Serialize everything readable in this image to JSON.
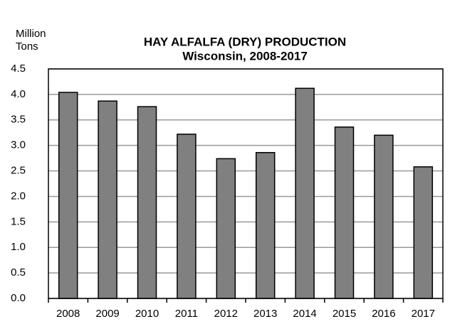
{
  "chart_data": {
    "type": "bar",
    "title": "HAY ALFALFA (DRY) PRODUCTION",
    "subtitle": "Wisconsin, 2008-2017",
    "y_label": [
      "Million",
      "Tons"
    ],
    "categories": [
      "2008",
      "2009",
      "2010",
      "2011",
      "2012",
      "2013",
      "2014",
      "2015",
      "2016",
      "2017"
    ],
    "values": [
      4.04,
      3.87,
      3.76,
      3.22,
      2.74,
      2.86,
      4.12,
      3.36,
      3.2,
      2.58
    ],
    "color": "#808080",
    "ylim": [
      0,
      4.5
    ],
    "yticks": [
      {
        "value": 0,
        "label": "0.0"
      },
      0.5,
      {
        "value": 1,
        "label": "1.0"
      },
      1.5,
      {
        "value": 2,
        "label": "2.0"
      },
      2.5,
      {
        "value": 3,
        "label": "3.0"
      },
      3.5,
      {
        "value": 4,
        "label": "4.0"
      },
      4.5
    ],
    "grid": true
  }
}
